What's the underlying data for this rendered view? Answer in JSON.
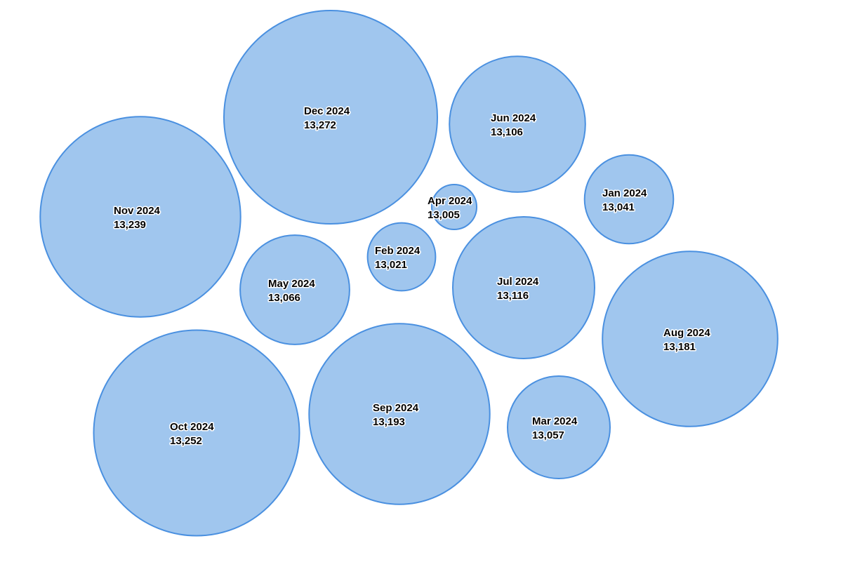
{
  "chart_data": {
    "type": "bubble",
    "points": [
      {
        "label": "Dec 2024",
        "value": 13272,
        "value_text": "13,272"
      },
      {
        "label": "Oct 2024",
        "value": 13252,
        "value_text": "13,252"
      },
      {
        "label": "Nov 2024",
        "value": 13239,
        "value_text": "13,239"
      },
      {
        "label": "Sep 2024",
        "value": 13193,
        "value_text": "13,193"
      },
      {
        "label": "Aug 2024",
        "value": 13181,
        "value_text": "13,181"
      },
      {
        "label": "Jul 2024",
        "value": 13116,
        "value_text": "13,116"
      },
      {
        "label": "Jun 2024",
        "value": 13106,
        "value_text": "13,106"
      },
      {
        "label": "May 2024",
        "value": 13066,
        "value_text": "13,066"
      },
      {
        "label": "Mar 2024",
        "value": 13057,
        "value_text": "13,057"
      },
      {
        "label": "Jan 2024",
        "value": 13041,
        "value_text": "13,041"
      },
      {
        "label": "Feb 2024",
        "value": 13021,
        "value_text": "13,021"
      },
      {
        "label": "Apr 2024",
        "value": 13005,
        "value_text": "13,005"
      }
    ],
    "colors": {
      "fill": "#a0c6ee",
      "stroke": "#4a90e0",
      "text": "#000000"
    }
  }
}
